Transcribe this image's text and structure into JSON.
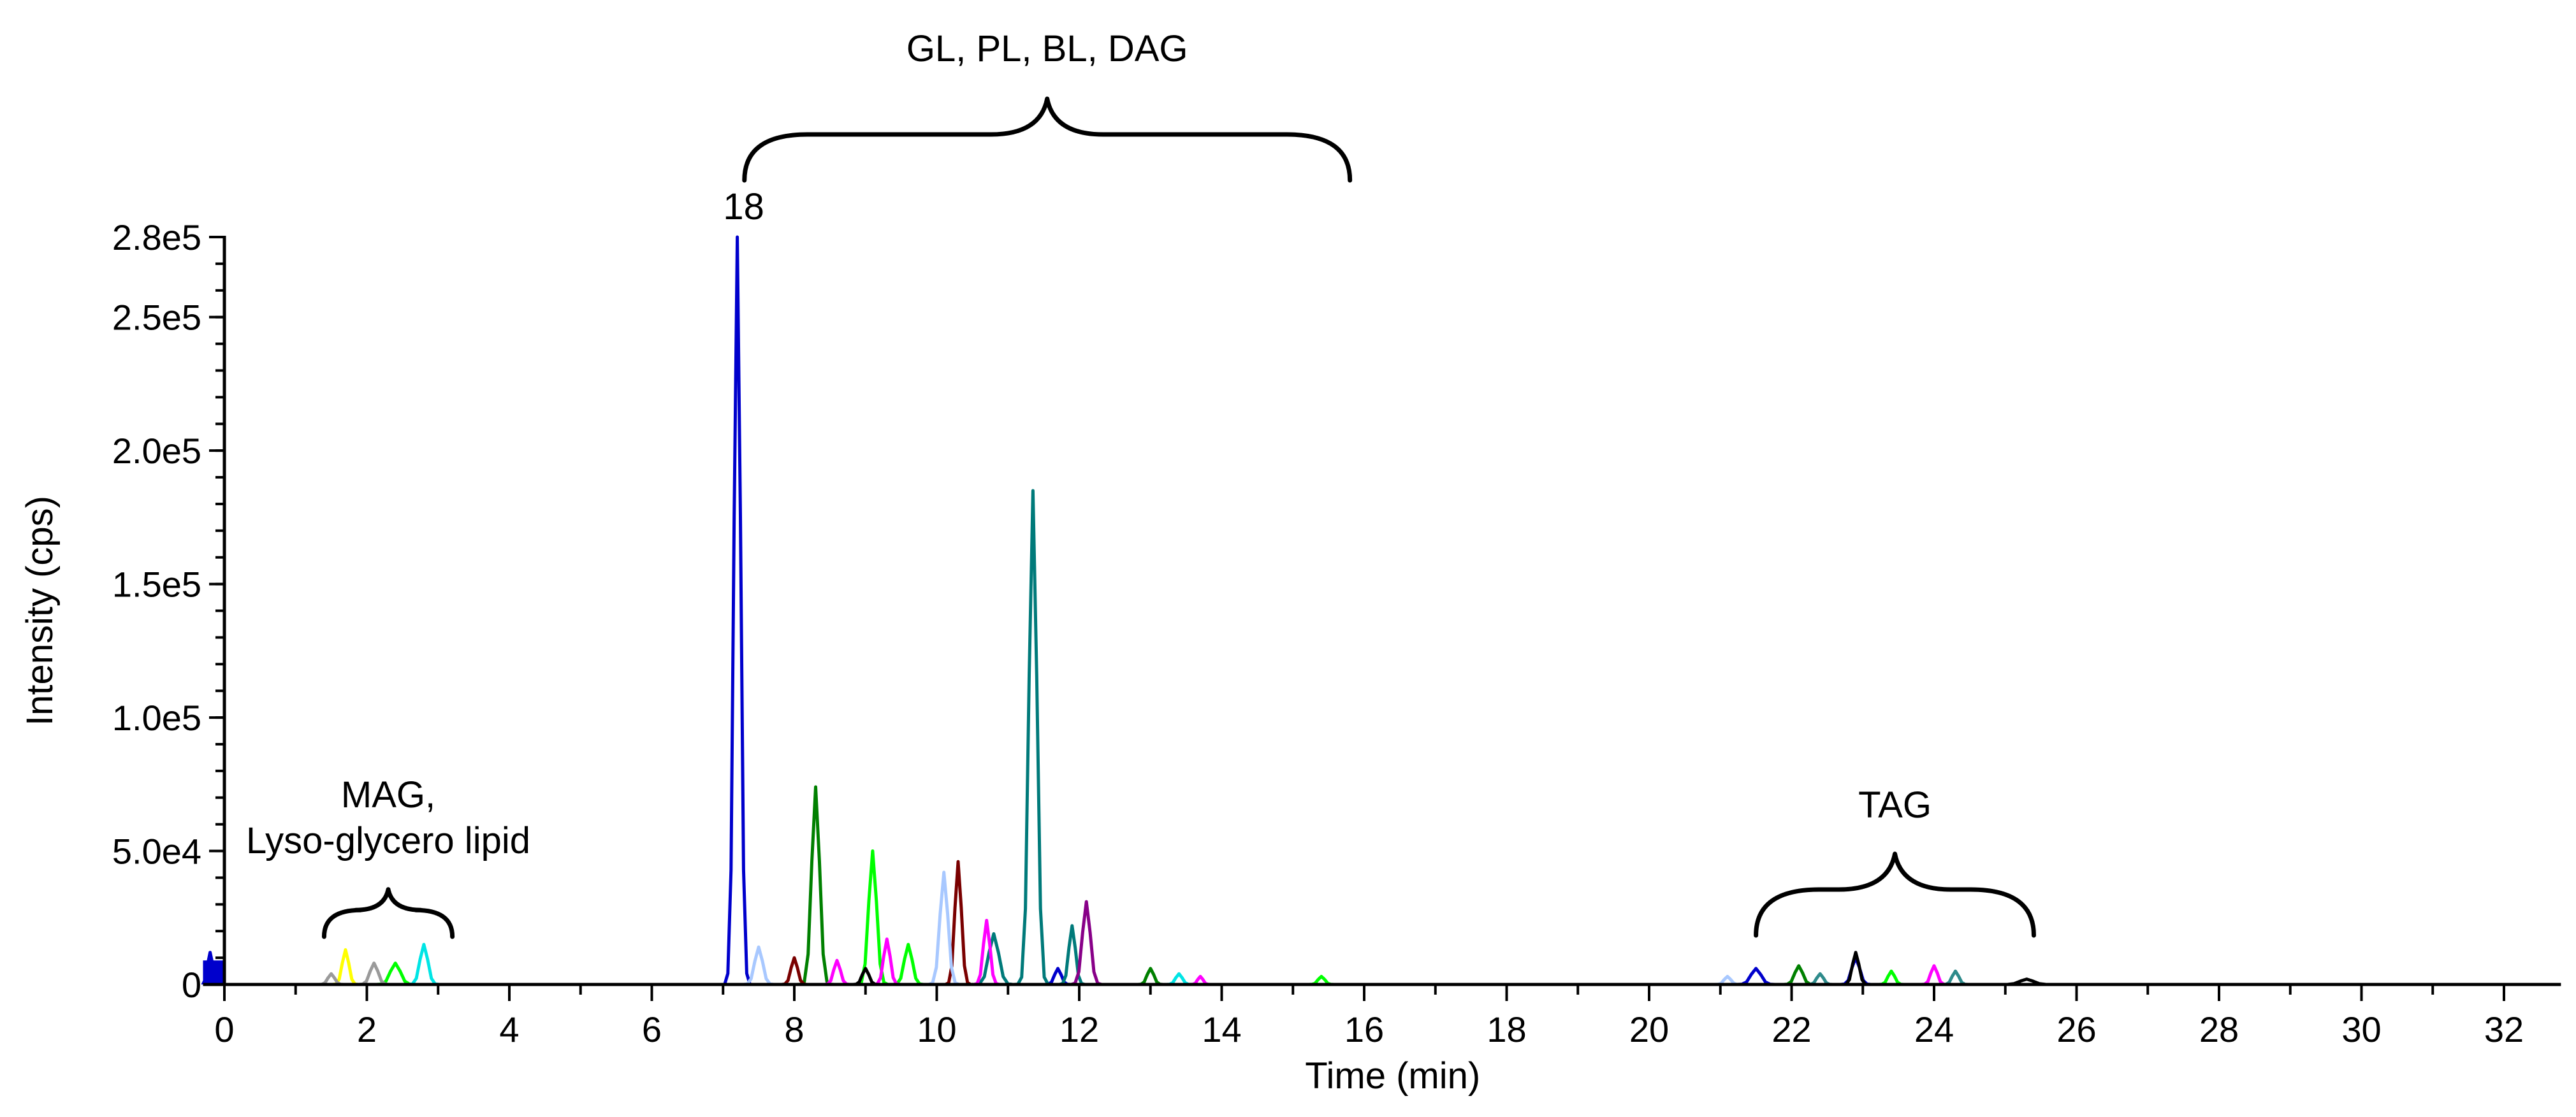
{
  "chart_data": {
    "type": "line",
    "title": "",
    "xlabel": "Time (min)",
    "ylabel": "Intensity (cps)",
    "xlim": [
      -0.3,
      32.8
    ],
    "ylim": [
      0,
      280000
    ],
    "x_ticks": [
      "0",
      "2",
      "4",
      "6",
      "8",
      "10",
      "12",
      "14",
      "16",
      "18",
      "20",
      "22",
      "24",
      "26",
      "28",
      "30",
      "32"
    ],
    "y_ticks": [
      "0",
      "5.0e4",
      "1.0e5",
      "1.5e5",
      "2.0e5",
      "2.5e5",
      "2.8e5"
    ],
    "y_tick_values": [
      0,
      50000,
      100000,
      150000,
      200000,
      250000,
      280000
    ],
    "grid": false,
    "legend": "none",
    "annotations": [
      {
        "id": "mag",
        "lines": [
          "MAG,",
          "Lyso-glycero lipid"
        ],
        "x_range": [
          1.4,
          3.2
        ]
      },
      {
        "id": "gl",
        "lines": [
          "GL, PL, BL, DAG"
        ],
        "x_range": [
          7.3,
          15.8
        ]
      },
      {
        "id": "tag",
        "lines": [
          "TAG"
        ],
        "x_range": [
          21.5,
          25.4
        ]
      }
    ],
    "peak_label": {
      "text": "18",
      "x": 7.2,
      "y": 280000
    },
    "series": [
      {
        "color": "#0000cc",
        "peaks": [
          [
            -0.2,
            12000,
            0.08
          ],
          [
            7.2,
            280000,
            0.1
          ],
          [
            21.5,
            6000,
            0.15
          ],
          [
            22.9,
            10000,
            0.12
          ],
          [
            11.7,
            6000,
            0.1
          ]
        ]
      },
      {
        "color": "#007a7a",
        "peaks": [
          [
            11.35,
            185000,
            0.12
          ],
          [
            10.8,
            19000,
            0.15
          ],
          [
            11.9,
            22000,
            0.1
          ]
        ]
      },
      {
        "color": "#008000",
        "peaks": [
          [
            8.3,
            74000,
            0.12
          ],
          [
            13.0,
            6000,
            0.1
          ],
          [
            22.1,
            7000,
            0.12
          ]
        ]
      },
      {
        "color": "#00ff00",
        "peaks": [
          [
            9.1,
            50000,
            0.12
          ],
          [
            9.6,
            15000,
            0.12
          ],
          [
            15.4,
            3000,
            0.1
          ],
          [
            2.4,
            8000,
            0.15
          ],
          [
            23.4,
            5000,
            0.1
          ]
        ]
      },
      {
        "color": "#7a0000",
        "peaks": [
          [
            10.3,
            46000,
            0.1
          ],
          [
            8.0,
            10000,
            0.1
          ]
        ]
      },
      {
        "color": "#a8c8ff",
        "peaks": [
          [
            10.1,
            42000,
            0.12
          ],
          [
            7.5,
            14000,
            0.12
          ],
          [
            21.1,
            3000,
            0.1
          ]
        ]
      },
      {
        "color": "#880088",
        "peaks": [
          [
            12.1,
            31000,
            0.12
          ]
        ]
      },
      {
        "color": "#ff00ff",
        "peaks": [
          [
            10.7,
            24000,
            0.1
          ],
          [
            9.3,
            17000,
            0.1
          ],
          [
            8.6,
            9000,
            0.1
          ],
          [
            24.0,
            7000,
            0.1
          ],
          [
            13.7,
            3000,
            0.08
          ]
        ]
      },
      {
        "color": "#00e5e5",
        "peaks": [
          [
            2.8,
            15000,
            0.12
          ],
          [
            13.4,
            4000,
            0.1
          ]
        ]
      },
      {
        "color": "#ffff00",
        "peaks": [
          [
            1.7,
            13000,
            0.1
          ]
        ]
      },
      {
        "color": "#9a9a9a",
        "peaks": [
          [
            2.1,
            8000,
            0.12
          ],
          [
            1.5,
            4000,
            0.1
          ]
        ]
      },
      {
        "color": "#000000",
        "peaks": [
          [
            22.9,
            12000,
            0.1
          ],
          [
            25.3,
            2000,
            0.2
          ],
          [
            9.0,
            6000,
            0.1
          ]
        ]
      },
      {
        "color": "#2e8b8b",
        "peaks": [
          [
            24.3,
            5000,
            0.1
          ],
          [
            22.4,
            4000,
            0.1
          ]
        ]
      }
    ]
  }
}
